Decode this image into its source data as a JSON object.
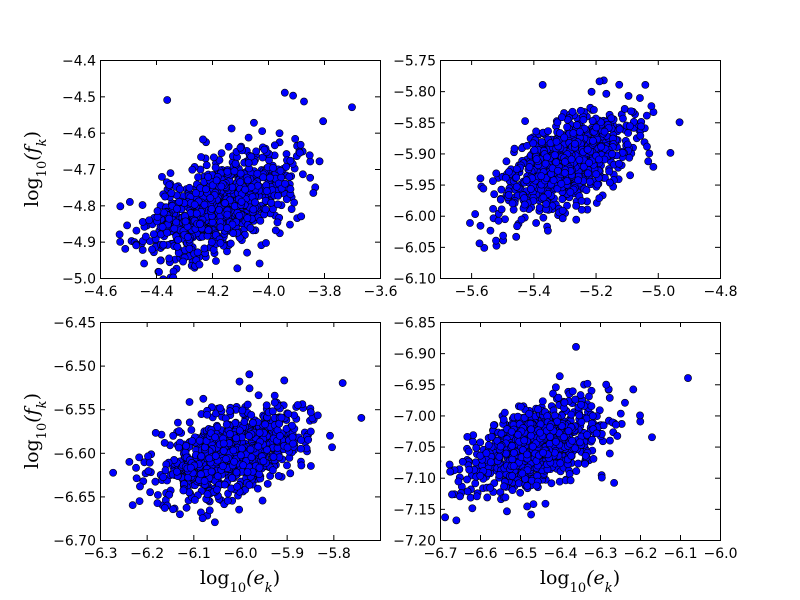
{
  "colors": {
    "marker_fill": "#0000ff",
    "marker_edge": "#000000",
    "background": "#ffffff"
  },
  "chart_data": [
    {
      "type": "scatter",
      "panel": "top-left",
      "title": "",
      "xlabel": "",
      "ylabel": "log10(f_k)",
      "xlim": [
        -4.6,
        -3.6
      ],
      "ylim": [
        -5.0,
        -4.4
      ],
      "xticks": [
        -4.6,
        -4.4,
        -4.2,
        -4.0,
        -3.8,
        -3.6
      ],
      "yticks": [
        -5.0,
        -4.9,
        -4.8,
        -4.7,
        -4.6,
        -4.5,
        -4.4
      ],
      "xtick_labels": [
        "−4.6",
        "−4.4",
        "−4.2",
        "−4.0",
        "−3.8",
        "−3.6"
      ],
      "ytick_labels": [
        "−5.0",
        "−4.9",
        "−4.8",
        "−4.7",
        "−4.6",
        "−4.5",
        "−4.4"
      ],
      "grid": false,
      "distribution": {
        "n": 900,
        "mean_x": -4.18,
        "mean_y": -4.8,
        "sd_x": 0.13,
        "sd_y": 0.075,
        "corr": 0.55,
        "seed": 11
      },
      "outliers": [
        [
          -4.36,
          -4.51
        ],
        [
          -3.94,
          -4.49
        ],
        [
          -3.7,
          -4.53
        ],
        [
          -4.03,
          -4.96
        ],
        [
          -4.53,
          -4.88
        ]
      ]
    },
    {
      "type": "scatter",
      "panel": "top-right",
      "title": "",
      "xlabel": "",
      "ylabel": "",
      "xlim": [
        -5.7,
        -4.8
      ],
      "ylim": [
        -6.1,
        -5.75
      ],
      "xticks": [
        -5.6,
        -5.4,
        -5.2,
        -5.0,
        -4.8
      ],
      "yticks": [
        -6.1,
        -6.05,
        -6.0,
        -5.95,
        -5.9,
        -5.85,
        -5.8,
        -5.75
      ],
      "xtick_labels": [
        "−5.6",
        "−5.4",
        "−5.2",
        "−5.0",
        "−4.8"
      ],
      "ytick_labels": [
        "−6.10",
        "−6.05",
        "−6.00",
        "−5.95",
        "−5.90",
        "−5.85",
        "−5.80",
        "−5.75"
      ],
      "grid": false,
      "distribution": {
        "n": 900,
        "mean_x": -5.3,
        "mean_y": -5.92,
        "sd_x": 0.1,
        "sd_y": 0.04,
        "corr": 0.55,
        "seed": 23
      },
      "outliers": [
        [
          -5.37,
          -5.79
        ],
        [
          -5.04,
          -5.79
        ],
        [
          -5.57,
          -5.94
        ],
        [
          -4.93,
          -5.85
        ],
        [
          -5.52,
          -6.04
        ]
      ]
    },
    {
      "type": "scatter",
      "panel": "bottom-left",
      "title": "",
      "xlabel": "log10(e_k)",
      "ylabel": "log10(f_k)",
      "xlim": [
        -6.3,
        -5.7
      ],
      "ylim": [
        -6.7,
        -6.45
      ],
      "xticks": [
        -6.3,
        -6.2,
        -6.1,
        -6.0,
        -5.9,
        -5.8
      ],
      "yticks": [
        -6.7,
        -6.65,
        -6.6,
        -6.55,
        -6.5,
        -6.45
      ],
      "xtick_labels": [
        "−6.3",
        "−6.2",
        "−6.1",
        "−6.0",
        "−5.9",
        "−5.8"
      ],
      "ytick_labels": [
        "−6.70",
        "−6.65",
        "−6.60",
        "−6.55",
        "−6.50",
        "−6.45"
      ],
      "grid": false,
      "distribution": {
        "n": 900,
        "mean_x": -6.02,
        "mean_y": -6.6,
        "sd_x": 0.075,
        "sd_y": 0.026,
        "corr": 0.45,
        "seed": 37
      },
      "outliers": [
        [
          -5.98,
          -6.51
        ],
        [
          -5.78,
          -6.52
        ],
        [
          -5.74,
          -6.56
        ],
        [
          -6.23,
          -6.66
        ],
        [
          -6.08,
          -6.675
        ]
      ]
    },
    {
      "type": "scatter",
      "panel": "bottom-right",
      "title": "",
      "xlabel": "log10(e_k)",
      "ylabel": "",
      "xlim": [
        -6.7,
        -6.0
      ],
      "ylim": [
        -7.2,
        -6.85
      ],
      "xticks": [
        -6.7,
        -6.6,
        -6.5,
        -6.4,
        -6.3,
        -6.2,
        -6.1,
        -6.0
      ],
      "yticks": [
        -7.2,
        -7.15,
        -7.1,
        -7.05,
        -7.0,
        -6.95,
        -6.9,
        -6.85
      ],
      "xtick_labels": [
        "−6.7",
        "−6.6",
        "−6.5",
        "−6.4",
        "−6.3",
        "−6.2",
        "−6.1",
        "−6.0"
      ],
      "ytick_labels": [
        "−7.20",
        "−7.15",
        "−7.10",
        "−7.05",
        "−7.00",
        "−6.95",
        "−6.90",
        "−6.85"
      ],
      "grid": false,
      "distribution": {
        "n": 900,
        "mean_x": -6.46,
        "mean_y": -7.05,
        "sd_x": 0.08,
        "sd_y": 0.035,
        "corr": 0.45,
        "seed": 53
      },
      "outliers": [
        [
          -6.36,
          -6.89
        ],
        [
          -6.08,
          -6.94
        ],
        [
          -6.17,
          -7.035
        ],
        [
          -6.2,
          -7.0
        ],
        [
          -6.65,
          -7.13
        ]
      ]
    }
  ]
}
